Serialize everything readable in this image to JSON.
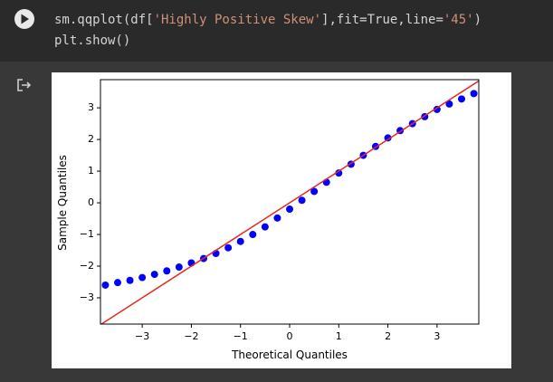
{
  "code": {
    "lines": [
      "sm.qqplot(df['Highly Positive Skew'],fit=True,line='45')",
      "plt.show()"
    ]
  },
  "chart_data": {
    "type": "scatter",
    "xlabel": "Theoretical Quantiles",
    "ylabel": "Sample Quantiles",
    "x": [
      -3.75,
      -3.5,
      -3.25,
      -3,
      -2.75,
      -2.5,
      -2.25,
      -2,
      -1.75,
      -1.5,
      -1.25,
      -1,
      -0.75,
      -0.5,
      -0.25,
      0,
      0.25,
      0.5,
      0.75,
      1,
      1.25,
      1.5,
      1.75,
      2,
      2.25,
      2.5,
      2.75,
      3,
      3.25,
      3.5,
      3.75
    ],
    "values": [
      -2.6,
      -2.52,
      -2.45,
      -2.36,
      -2.26,
      -2.15,
      -2.03,
      -1.9,
      -1.76,
      -1.6,
      -1.42,
      -1.22,
      -1.0,
      -0.76,
      -0.48,
      -0.2,
      0.08,
      0.36,
      0.65,
      0.94,
      1.22,
      1.5,
      1.78,
      2.05,
      2.28,
      2.5,
      2.72,
      2.95,
      3.12,
      3.28,
      3.45
    ],
    "color": "#0000ff",
    "line_color": "#e8281e",
    "xlim": [
      -3.85,
      3.85
    ],
    "ylim": [
      -3.83,
      3.89
    ],
    "xticks": [
      {
        "value": -3,
        "label": "−3"
      },
      {
        "value": -2,
        "label": "−2"
      },
      {
        "value": -1,
        "label": "−1"
      },
      0,
      1,
      2,
      3
    ],
    "yticks": [
      {
        "value": -3,
        "label": "−3"
      },
      {
        "value": -2,
        "label": "−2"
      },
      {
        "value": -1,
        "label": "−1"
      },
      0,
      1,
      2,
      3
    ]
  }
}
